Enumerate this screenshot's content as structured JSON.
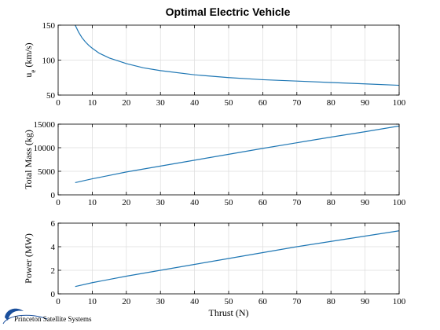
{
  "figure_title": "Optimal Electric Vehicle",
  "logo": {
    "text": "Princeton Satellite Systems"
  },
  "colors": {
    "line": "#1f77b4",
    "grid": "#dcdcdc",
    "logo_blue": "#1a4f9c"
  },
  "chart_data": [
    {
      "type": "line",
      "ylabel_main": "u",
      "ylabel_sub": "e",
      "ylabel_unit": "(km/s)",
      "xlabel": "",
      "xlim": [
        0,
        100
      ],
      "ylim": [
        50,
        150
      ],
      "xticks": [
        0,
        10,
        20,
        30,
        40,
        50,
        60,
        70,
        80,
        90,
        100
      ],
      "yticks": [
        50,
        100,
        150
      ],
      "grid": true,
      "series": [
        {
          "x": [
            4.5,
            5,
            6,
            7,
            8,
            9,
            10,
            12,
            15,
            20,
            25,
            30,
            40,
            50,
            60,
            70,
            80,
            90,
            100
          ],
          "values": [
            158,
            150,
            140,
            132,
            126,
            121,
            117,
            110,
            103,
            95,
            89,
            85,
            79,
            75,
            72,
            70,
            68,
            66,
            64
          ]
        }
      ]
    },
    {
      "type": "line",
      "ylabel": "Total Mass (kg)",
      "xlabel": "",
      "xlim": [
        0,
        100
      ],
      "ylim": [
        0,
        15000
      ],
      "xticks": [
        0,
        10,
        20,
        30,
        40,
        50,
        60,
        70,
        80,
        90,
        100
      ],
      "yticks": [
        0,
        5000,
        10000,
        15000
      ],
      "grid": true,
      "series": [
        {
          "x": [
            5,
            10,
            20,
            30,
            40,
            50,
            60,
            70,
            80,
            90,
            100
          ],
          "values": [
            2600,
            3400,
            4850,
            6100,
            7350,
            8600,
            9850,
            11050,
            12250,
            13400,
            14600
          ]
        }
      ]
    },
    {
      "type": "line",
      "ylabel": "Power (MW)",
      "xlabel": "Thrust (N)",
      "xlim": [
        0,
        100
      ],
      "ylim": [
        0,
        6
      ],
      "xticks": [
        0,
        10,
        20,
        30,
        40,
        50,
        60,
        70,
        80,
        90,
        100
      ],
      "yticks": [
        0,
        2,
        4,
        6
      ],
      "grid": true,
      "series": [
        {
          "x": [
            5,
            10,
            20,
            30,
            40,
            50,
            60,
            70,
            80,
            90,
            100
          ],
          "values": [
            0.62,
            0.95,
            1.5,
            2.0,
            2.5,
            3.0,
            3.5,
            4.0,
            4.45,
            4.9,
            5.35
          ]
        }
      ]
    }
  ]
}
